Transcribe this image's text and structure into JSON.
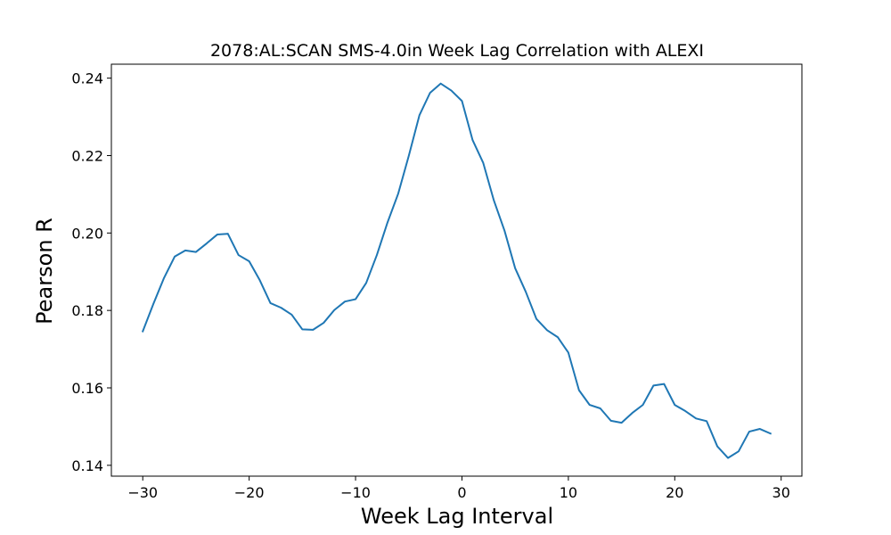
{
  "chart_data": {
    "type": "line",
    "title": "2078:AL:SCAN SMS-4.0in Week Lag Correlation with ALEXI",
    "xlabel": "Week Lag Interval",
    "ylabel": "Pearson R",
    "xlim": [
      -32.95,
      31.95
    ],
    "ylim": [
      0.1372,
      0.2436
    ],
    "xticks": [
      -30,
      -20,
      -10,
      0,
      10,
      20,
      30
    ],
    "xtick_labels": [
      "−30",
      "−20",
      "−10",
      "0",
      "10",
      "20",
      "30"
    ],
    "yticks": [
      0.14,
      0.16,
      0.18,
      0.2,
      0.22,
      0.24
    ],
    "ytick_labels": [
      "0.14",
      "0.16",
      "0.18",
      "0.20",
      "0.22",
      "0.24"
    ],
    "grid": false,
    "line_color": "#1f77b4",
    "series": [
      {
        "x": [
          -30,
          -29,
          -28,
          -27,
          -26,
          -25,
          -24,
          -23,
          -22,
          -21,
          -20,
          -19,
          -18,
          -17,
          -16,
          -15,
          -14,
          -13,
          -12,
          -11,
          -10,
          -9,
          -8,
          -7,
          -6,
          -5,
          -4,
          -3,
          -2,
          -1,
          0,
          1,
          2,
          3,
          4,
          5,
          6,
          7,
          8,
          9,
          10,
          11,
          12,
          13,
          14,
          15,
          16,
          17,
          18,
          19,
          20,
          21,
          22,
          23,
          24,
          25,
          26,
          27,
          28,
          29
        ],
        "values": [
          0.1746,
          0.1817,
          0.1884,
          0.1939,
          0.1955,
          0.1951,
          0.1973,
          0.1996,
          0.1998,
          0.1943,
          0.1927,
          0.1878,
          0.1819,
          0.1807,
          0.1789,
          0.1751,
          0.175,
          0.1768,
          0.1801,
          0.1823,
          0.1829,
          0.1871,
          0.1943,
          0.2027,
          0.2101,
          0.2199,
          0.2304,
          0.2362,
          0.2386,
          0.2368,
          0.2341,
          0.224,
          0.2181,
          0.2084,
          0.2006,
          0.1909,
          0.1848,
          0.1778,
          0.1749,
          0.1731,
          0.1691,
          0.1594,
          0.1556,
          0.1547,
          0.1515,
          0.151,
          0.1535,
          0.1556,
          0.1606,
          0.161,
          0.1556,
          0.154,
          0.1521,
          0.1514,
          0.1449,
          0.1419,
          0.1436,
          0.1487,
          0.1494,
          0.1482
        ]
      }
    ]
  }
}
